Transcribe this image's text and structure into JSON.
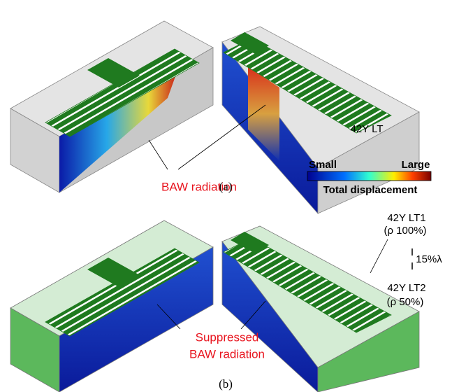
{
  "panel_a": {
    "annotation": "BAW radiation",
    "material": "42Y LT",
    "label": "(a)"
  },
  "colorbar": {
    "min_label": "Small",
    "max_label": "Large",
    "title": "Total displacement"
  },
  "panel_b": {
    "layer1": "42Y LT1",
    "layer1_density": "(ρ 100%)",
    "thickness": "15%λ",
    "layer2": "42Y LT2",
    "layer2_density": "(ρ 50%)",
    "annotation_line1": "Suppressed",
    "annotation_line2": "BAW radiation",
    "label": "(b)"
  }
}
